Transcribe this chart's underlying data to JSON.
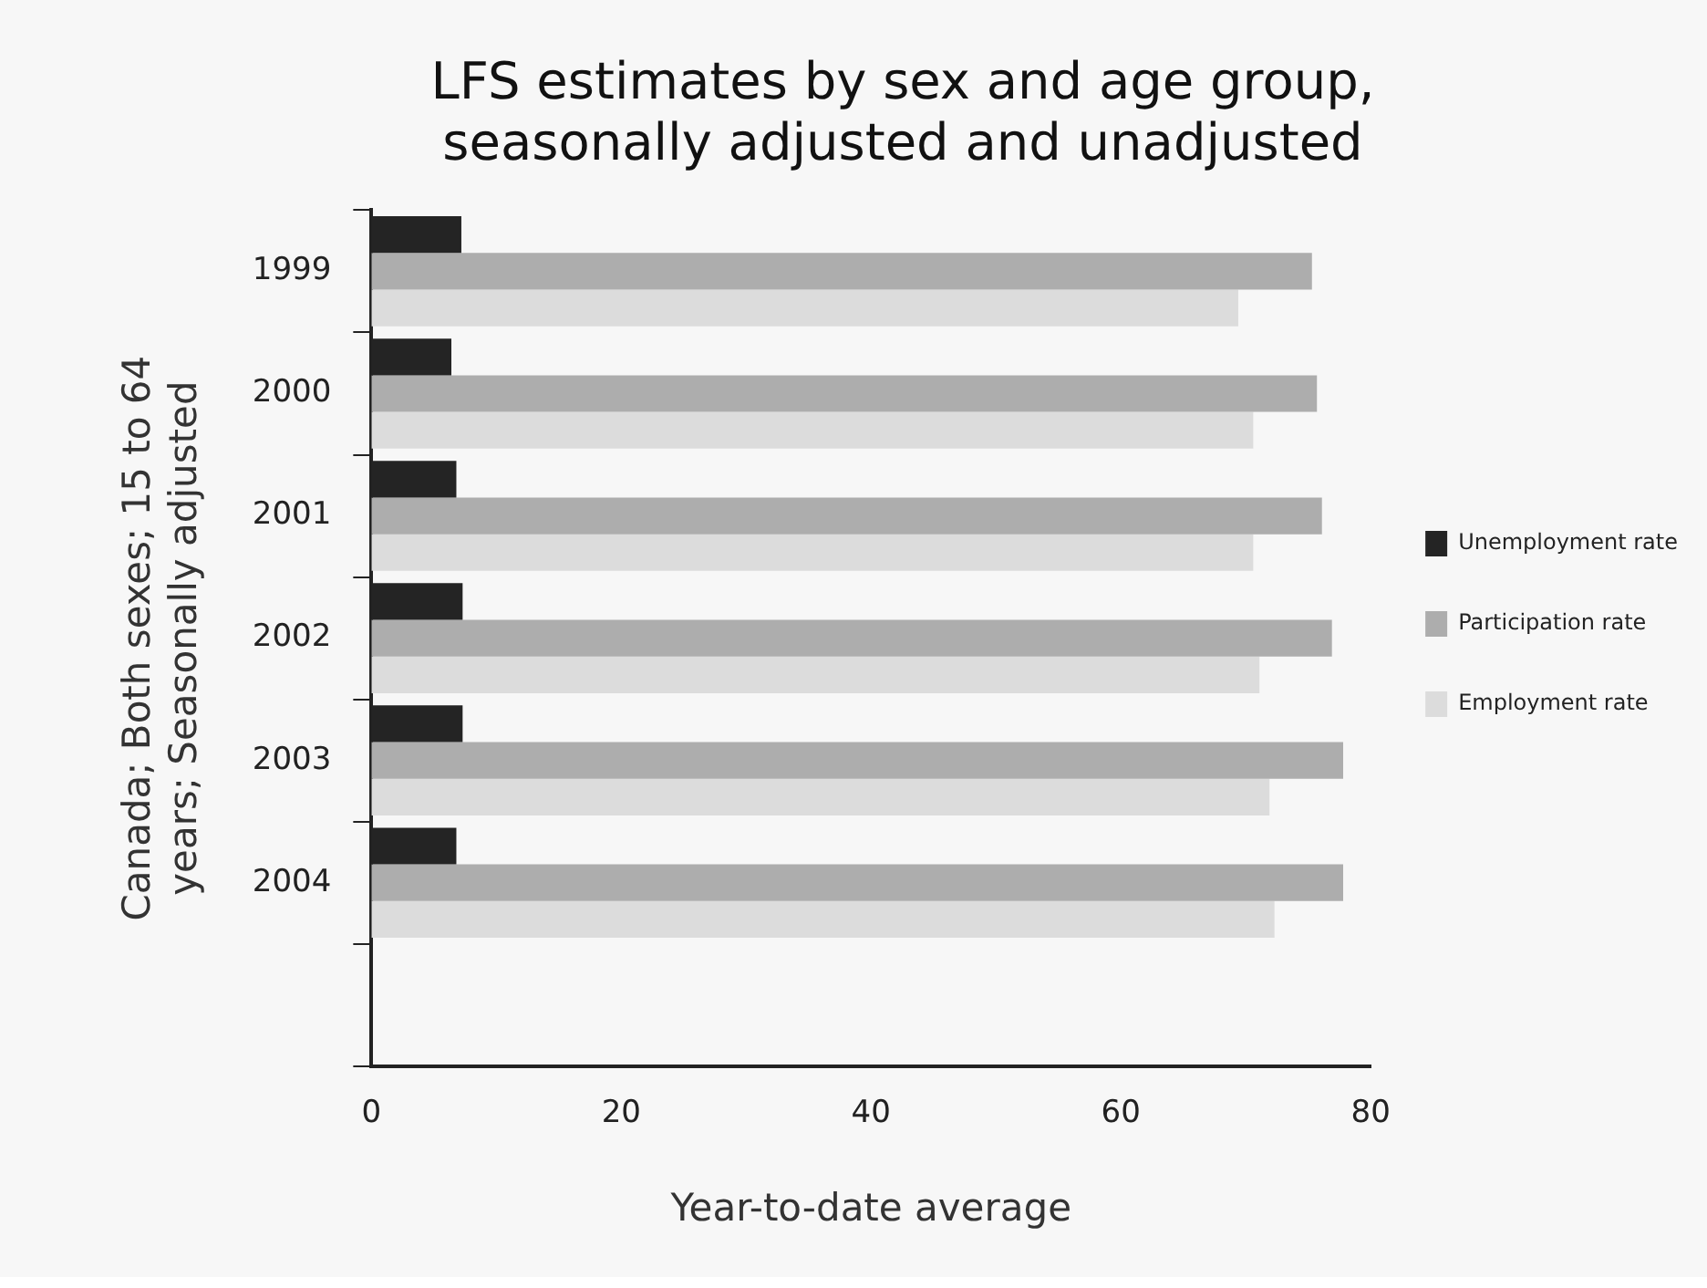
{
  "chart_data": {
    "type": "bar",
    "orientation": "horizontal",
    "title": "LFS estimates by sex and age group, seasonally adjusted and unadjusted",
    "ylabel": "Canada; Both sexes; 15 to 64 years; Seasonally adjusted",
    "xlabel": "Year-to-date average",
    "categories": [
      "1999",
      "2000",
      "2001",
      "2002",
      "2003",
      "2004",
      null
    ],
    "series": [
      {
        "name": "Unemployment rate",
        "color": "#242424",
        "values": [
          7.2,
          6.4,
          6.8,
          7.3,
          7.3,
          6.8,
          null
        ]
      },
      {
        "name": "Participation rate",
        "color": "#adadad",
        "values": [
          75.3,
          75.7,
          76.1,
          76.9,
          77.8,
          77.8,
          null
        ]
      },
      {
        "name": "Employment rate",
        "color": "#dcdcdc",
        "values": [
          69.4,
          70.6,
          70.6,
          71.1,
          71.9,
          72.3,
          null
        ]
      }
    ],
    "xlim": [
      0,
      80
    ],
    "xticks": [
      0,
      20,
      40,
      60,
      80
    ],
    "grid": false,
    "legend": "right"
  }
}
